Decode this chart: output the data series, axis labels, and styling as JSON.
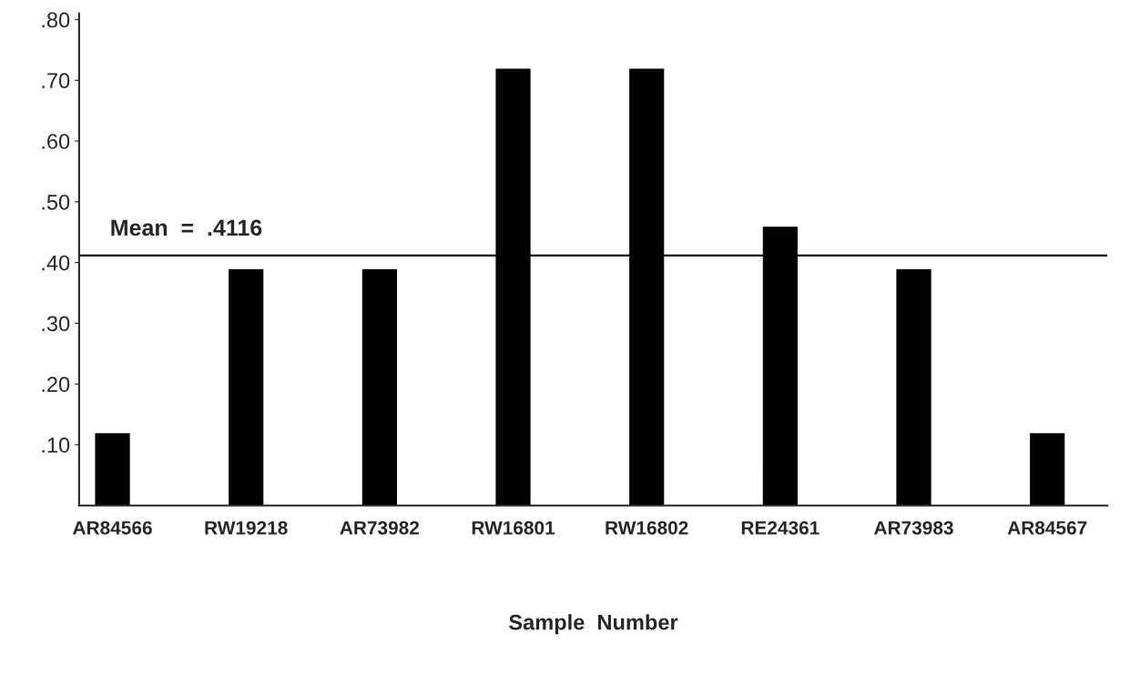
{
  "chart_data": {
    "type": "bar",
    "xlabel": "Sample  Number",
    "categories": [
      "AR84566",
      "RW19218",
      "AR73982",
      "RW16801",
      "RW16802",
      "RE24361",
      "AR73983",
      "AR84567"
    ],
    "values": [
      0.12,
      0.39,
      0.39,
      0.72,
      0.72,
      0.46,
      0.39,
      0.12
    ],
    "color": "#000000",
    "ylim": [
      0,
      0.81
    ],
    "yticks": [
      {
        "value": 0.1,
        "label": ".10"
      },
      {
        "value": 0.2,
        "label": ".20"
      },
      {
        "value": 0.3,
        "label": ".30"
      },
      {
        "value": 0.4,
        "label": ".40"
      },
      {
        "value": 0.5,
        "label": ".50"
      },
      {
        "value": 0.6,
        "label": ".60"
      },
      {
        "value": 0.7,
        "label": ".70"
      },
      {
        "value": 0.8,
        "label": ".80"
      }
    ],
    "ref_lines": [
      {
        "axis": "y",
        "value": 0.4116,
        "label": "Mean  =  .4116",
        "color": "#000000",
        "line_style": "solid"
      }
    ],
    "grid": false,
    "legend": false
  }
}
